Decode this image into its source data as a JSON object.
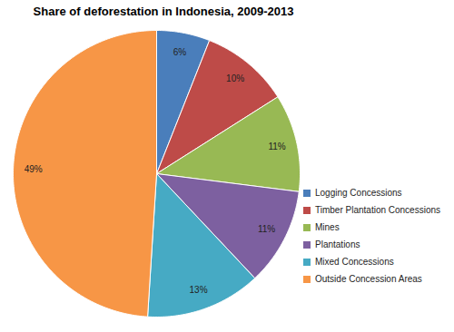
{
  "chart_data": {
    "type": "pie",
    "title": "Share of deforestation in Indonesia, 2009-2013",
    "categories": [
      "Logging Concessions",
      "Timber Plantation Concessions",
      "Mines",
      "Plantations",
      "Mixed Concessions",
      "Outside Concession Areas"
    ],
    "values": [
      6,
      10,
      11,
      11,
      13,
      49
    ],
    "value_labels": [
      "6%",
      "10%",
      "11%",
      "11%",
      "13%",
      "49%"
    ],
    "colors": [
      "#4a7ebb",
      "#be4b48",
      "#98b954",
      "#7d60a0",
      "#46aac4",
      "#f79646"
    ],
    "data_labels": true,
    "legend": "right"
  }
}
